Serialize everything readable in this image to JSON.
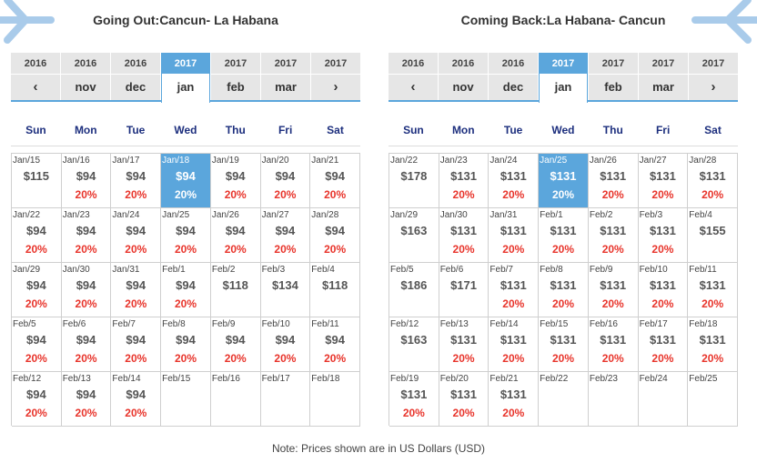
{
  "outbound": {
    "title": "Going Out:Cancun- La Habana",
    "months": [
      {
        "year": "2016",
        "label": "‹",
        "arrow": true
      },
      {
        "year": "2016",
        "label": "nov"
      },
      {
        "year": "2016",
        "label": "dec"
      },
      {
        "year": "2017",
        "label": "jan",
        "active": true
      },
      {
        "year": "2017",
        "label": "feb"
      },
      {
        "year": "2017",
        "label": "mar"
      },
      {
        "year": "2017",
        "label": "›",
        "arrow": true
      }
    ],
    "days": [
      "Sun",
      "Mon",
      "Tue",
      "Wed",
      "Thu",
      "Fri",
      "Sat"
    ],
    "cells": [
      {
        "date": "Jan/15",
        "price": "$115",
        "pct": ""
      },
      {
        "date": "Jan/16",
        "price": "$94",
        "pct": "20%"
      },
      {
        "date": "Jan/17",
        "price": "$94",
        "pct": "20%"
      },
      {
        "date": "Jan/18",
        "price": "$94",
        "pct": "20%",
        "selected": true
      },
      {
        "date": "Jan/19",
        "price": "$94",
        "pct": "20%"
      },
      {
        "date": "Jan/20",
        "price": "$94",
        "pct": "20%"
      },
      {
        "date": "Jan/21",
        "price": "$94",
        "pct": "20%"
      },
      {
        "date": "Jan/22",
        "price": "$94",
        "pct": "20%"
      },
      {
        "date": "Jan/23",
        "price": "$94",
        "pct": "20%"
      },
      {
        "date": "Jan/24",
        "price": "$94",
        "pct": "20%"
      },
      {
        "date": "Jan/25",
        "price": "$94",
        "pct": "20%"
      },
      {
        "date": "Jan/26",
        "price": "$94",
        "pct": "20%"
      },
      {
        "date": "Jan/27",
        "price": "$94",
        "pct": "20%"
      },
      {
        "date": "Jan/28",
        "price": "$94",
        "pct": "20%"
      },
      {
        "date": "Jan/29",
        "price": "$94",
        "pct": "20%"
      },
      {
        "date": "Jan/30",
        "price": "$94",
        "pct": "20%"
      },
      {
        "date": "Jan/31",
        "price": "$94",
        "pct": "20%"
      },
      {
        "date": "Feb/1",
        "price": "$94",
        "pct": "20%"
      },
      {
        "date": "Feb/2",
        "price": "$118",
        "pct": ""
      },
      {
        "date": "Feb/3",
        "price": "$134",
        "pct": ""
      },
      {
        "date": "Feb/4",
        "price": "$118",
        "pct": ""
      },
      {
        "date": "Feb/5",
        "price": "$94",
        "pct": "20%"
      },
      {
        "date": "Feb/6",
        "price": "$94",
        "pct": "20%"
      },
      {
        "date": "Feb/7",
        "price": "$94",
        "pct": "20%"
      },
      {
        "date": "Feb/8",
        "price": "$94",
        "pct": "20%"
      },
      {
        "date": "Feb/9",
        "price": "$94",
        "pct": "20%"
      },
      {
        "date": "Feb/10",
        "price": "$94",
        "pct": "20%"
      },
      {
        "date": "Feb/11",
        "price": "$94",
        "pct": "20%"
      },
      {
        "date": "Feb/12",
        "price": "$94",
        "pct": "20%"
      },
      {
        "date": "Feb/13",
        "price": "$94",
        "pct": "20%"
      },
      {
        "date": "Feb/14",
        "price": "$94",
        "pct": "20%"
      },
      {
        "date": "Feb/15",
        "price": "",
        "pct": ""
      },
      {
        "date": "Feb/16",
        "price": "",
        "pct": ""
      },
      {
        "date": "Feb/17",
        "price": "",
        "pct": ""
      },
      {
        "date": "Feb/18",
        "price": "",
        "pct": ""
      }
    ]
  },
  "return": {
    "title": "Coming Back:La Habana- Cancun",
    "months": [
      {
        "year": "2016",
        "label": "‹",
        "arrow": true
      },
      {
        "year": "2016",
        "label": "nov"
      },
      {
        "year": "2016",
        "label": "dec"
      },
      {
        "year": "2017",
        "label": "jan",
        "active": true
      },
      {
        "year": "2017",
        "label": "feb"
      },
      {
        "year": "2017",
        "label": "mar"
      },
      {
        "year": "2017",
        "label": "›",
        "arrow": true
      }
    ],
    "days": [
      "Sun",
      "Mon",
      "Tue",
      "Wed",
      "Thu",
      "Fri",
      "Sat"
    ],
    "cells": [
      {
        "date": "Jan/22",
        "price": "$178",
        "pct": ""
      },
      {
        "date": "Jan/23",
        "price": "$131",
        "pct": "20%"
      },
      {
        "date": "Jan/24",
        "price": "$131",
        "pct": "20%"
      },
      {
        "date": "Jan/25",
        "price": "$131",
        "pct": "20%",
        "selected": true
      },
      {
        "date": "Jan/26",
        "price": "$131",
        "pct": "20%"
      },
      {
        "date": "Jan/27",
        "price": "$131",
        "pct": "20%"
      },
      {
        "date": "Jan/28",
        "price": "$131",
        "pct": "20%"
      },
      {
        "date": "Jan/29",
        "price": "$163",
        "pct": ""
      },
      {
        "date": "Jan/30",
        "price": "$131",
        "pct": "20%"
      },
      {
        "date": "Jan/31",
        "price": "$131",
        "pct": "20%"
      },
      {
        "date": "Feb/1",
        "price": "$131",
        "pct": "20%"
      },
      {
        "date": "Feb/2",
        "price": "$131",
        "pct": "20%"
      },
      {
        "date": "Feb/3",
        "price": "$131",
        "pct": "20%"
      },
      {
        "date": "Feb/4",
        "price": "$155",
        "pct": ""
      },
      {
        "date": "Feb/5",
        "price": "$186",
        "pct": ""
      },
      {
        "date": "Feb/6",
        "price": "$171",
        "pct": ""
      },
      {
        "date": "Feb/7",
        "price": "$131",
        "pct": "20%"
      },
      {
        "date": "Feb/8",
        "price": "$131",
        "pct": "20%"
      },
      {
        "date": "Feb/9",
        "price": "$131",
        "pct": "20%"
      },
      {
        "date": "Feb/10",
        "price": "$131",
        "pct": "20%"
      },
      {
        "date": "Feb/11",
        "price": "$131",
        "pct": "20%"
      },
      {
        "date": "Feb/12",
        "price": "$163",
        "pct": ""
      },
      {
        "date": "Feb/13",
        "price": "$131",
        "pct": "20%"
      },
      {
        "date": "Feb/14",
        "price": "$131",
        "pct": "20%"
      },
      {
        "date": "Feb/15",
        "price": "$131",
        "pct": "20%"
      },
      {
        "date": "Feb/16",
        "price": "$131",
        "pct": "20%"
      },
      {
        "date": "Feb/17",
        "price": "$131",
        "pct": "20%"
      },
      {
        "date": "Feb/18",
        "price": "$131",
        "pct": "20%"
      },
      {
        "date": "Feb/19",
        "price": "$131",
        "pct": "20%"
      },
      {
        "date": "Feb/20",
        "price": "$131",
        "pct": "20%"
      },
      {
        "date": "Feb/21",
        "price": "$131",
        "pct": "20%"
      },
      {
        "date": "Feb/22",
        "price": "",
        "pct": ""
      },
      {
        "date": "Feb/23",
        "price": "",
        "pct": ""
      },
      {
        "date": "Feb/24",
        "price": "",
        "pct": ""
      },
      {
        "date": "Feb/25",
        "price": "",
        "pct": ""
      }
    ]
  },
  "note": "Note: Prices shown are in US Dollars (USD)",
  "icons": {
    "left": "plane-icon",
    "right": "plane-icon"
  },
  "colors": {
    "accent": "#5ba6dc",
    "discount": "#e8342b",
    "weekday": "#1d2f7e"
  }
}
